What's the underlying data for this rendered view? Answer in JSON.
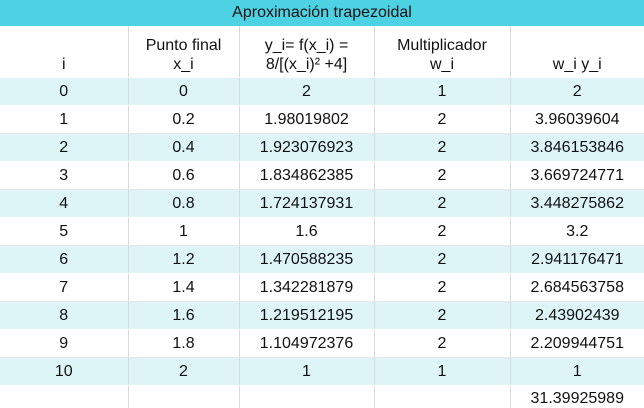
{
  "title": "Aproximación trapezoidal",
  "headers": {
    "i": "i",
    "x": {
      "line1": "Punto final",
      "line2": "x_i"
    },
    "y": {
      "line1": "y_i= f(x_i) =",
      "line2": "8/[(x_i)² +4]"
    },
    "w": {
      "line1": "Multiplicador",
      "line2": "w_i"
    },
    "wy": "w_i y_i"
  },
  "rows": [
    {
      "i": "0",
      "x": "0",
      "y": "2",
      "w": "1",
      "wy": "2"
    },
    {
      "i": "1",
      "x": "0.2",
      "y": "1.98019802",
      "w": "2",
      "wy": "3.96039604"
    },
    {
      "i": "2",
      "x": "0.4",
      "y": "1.923076923",
      "w": "2",
      "wy": "3.846153846"
    },
    {
      "i": "3",
      "x": "0.6",
      "y": "1.834862385",
      "w": "2",
      "wy": "3.669724771"
    },
    {
      "i": "4",
      "x": "0.8",
      "y": "1.724137931",
      "w": "2",
      "wy": "3.448275862"
    },
    {
      "i": "5",
      "x": "1",
      "y": "1.6",
      "w": "2",
      "wy": "3.2"
    },
    {
      "i": "6",
      "x": "1.2",
      "y": "1.470588235",
      "w": "2",
      "wy": "2.941176471"
    },
    {
      "i": "7",
      "x": "1.4",
      "y": "1.342281879",
      "w": "2",
      "wy": "2.684563758"
    },
    {
      "i": "8",
      "x": "1.6",
      "y": "1.219512195",
      "w": "2",
      "wy": "2.43902439"
    },
    {
      "i": "9",
      "x": "1.8",
      "y": "1.104972376",
      "w": "2",
      "wy": "2.209944751"
    },
    {
      "i": "10",
      "x": "2",
      "y": "1",
      "w": "1",
      "wy": "1"
    }
  ],
  "total": "31.39925989",
  "colors": {
    "title_bar": "#4dd2e4",
    "band": "#def5f8",
    "white": "#ffffff"
  }
}
